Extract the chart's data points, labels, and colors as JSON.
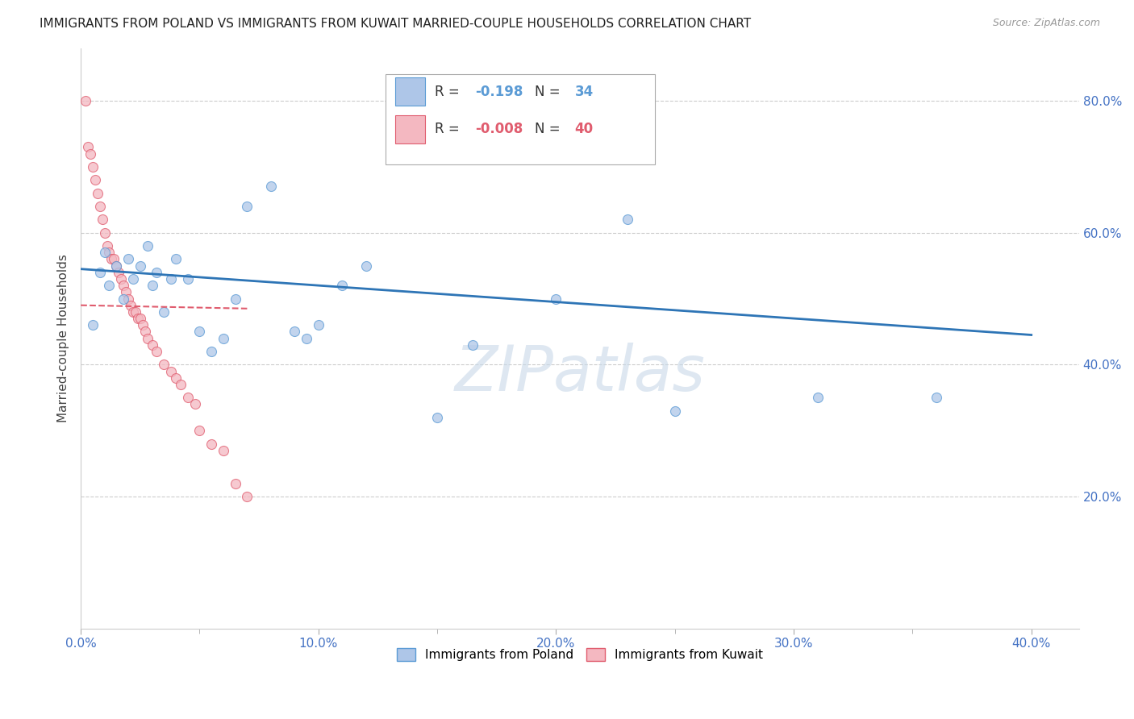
{
  "title": "IMMIGRANTS FROM POLAND VS IMMIGRANTS FROM KUWAIT MARRIED-COUPLE HOUSEHOLDS CORRELATION CHART",
  "source": "Source: ZipAtlas.com",
  "ylabel": "Married-couple Households",
  "xlim": [
    0.0,
    0.42
  ],
  "ylim": [
    0.0,
    0.88
  ],
  "xtick_labels": [
    "0.0%",
    "",
    "10.0%",
    "",
    "20.0%",
    "",
    "30.0%",
    "",
    "40.0%"
  ],
  "xtick_vals": [
    0.0,
    0.05,
    0.1,
    0.15,
    0.2,
    0.25,
    0.3,
    0.35,
    0.4
  ],
  "xtick_display": [
    "0.0%",
    "10.0%",
    "20.0%",
    "30.0%",
    "40.0%"
  ],
  "xtick_display_vals": [
    0.0,
    0.1,
    0.2,
    0.3,
    0.4
  ],
  "ytick_labels_right": [
    "20.0%",
    "40.0%",
    "60.0%",
    "80.0%"
  ],
  "ytick_vals_right": [
    0.2,
    0.4,
    0.6,
    0.8
  ],
  "grid_color": "#cccccc",
  "background_color": "#ffffff",
  "poland_color": "#aec6e8",
  "poland_edge_color": "#5b9bd5",
  "kuwait_color": "#f4b8c1",
  "kuwait_edge_color": "#e05c6e",
  "poland_R": "-0.198",
  "poland_N": "34",
  "kuwait_R": "-0.008",
  "kuwait_N": "40",
  "legend_color_poland": "#5b9bd5",
  "legend_color_kuwait": "#e05c6e",
  "legend_color_N": "#5b9bd5",
  "watermark": "ZIPatlas",
  "watermark_color": "#c8d8e8",
  "poland_scatter_x": [
    0.005,
    0.008,
    0.01,
    0.012,
    0.015,
    0.018,
    0.02,
    0.022,
    0.025,
    0.028,
    0.03,
    0.032,
    0.035,
    0.038,
    0.04,
    0.045,
    0.05,
    0.055,
    0.06,
    0.065,
    0.07,
    0.08,
    0.09,
    0.095,
    0.1,
    0.11,
    0.12,
    0.15,
    0.165,
    0.2,
    0.23,
    0.25,
    0.31,
    0.36
  ],
  "poland_scatter_y": [
    0.46,
    0.54,
    0.57,
    0.52,
    0.55,
    0.5,
    0.56,
    0.53,
    0.55,
    0.58,
    0.52,
    0.54,
    0.48,
    0.53,
    0.56,
    0.53,
    0.45,
    0.42,
    0.44,
    0.5,
    0.64,
    0.67,
    0.45,
    0.44,
    0.46,
    0.52,
    0.55,
    0.32,
    0.43,
    0.5,
    0.62,
    0.33,
    0.35,
    0.35
  ],
  "kuwait_scatter_x": [
    0.002,
    0.003,
    0.004,
    0.005,
    0.006,
    0.007,
    0.008,
    0.009,
    0.01,
    0.011,
    0.012,
    0.013,
    0.014,
    0.015,
    0.016,
    0.017,
    0.018,
    0.019,
    0.02,
    0.021,
    0.022,
    0.023,
    0.024,
    0.025,
    0.026,
    0.027,
    0.028,
    0.03,
    0.032,
    0.035,
    0.038,
    0.04,
    0.042,
    0.045,
    0.048,
    0.05,
    0.055,
    0.06,
    0.065,
    0.07
  ],
  "kuwait_scatter_y": [
    0.8,
    0.73,
    0.72,
    0.7,
    0.68,
    0.66,
    0.64,
    0.62,
    0.6,
    0.58,
    0.57,
    0.56,
    0.56,
    0.55,
    0.54,
    0.53,
    0.52,
    0.51,
    0.5,
    0.49,
    0.48,
    0.48,
    0.47,
    0.47,
    0.46,
    0.45,
    0.44,
    0.43,
    0.42,
    0.4,
    0.39,
    0.38,
    0.37,
    0.35,
    0.34,
    0.3,
    0.28,
    0.27,
    0.22,
    0.2
  ],
  "poland_trendline_x": [
    0.0,
    0.4
  ],
  "poland_trendline_y": [
    0.545,
    0.445
  ],
  "kuwait_trendline_x": [
    0.0,
    0.07
  ],
  "kuwait_trendline_y": [
    0.49,
    0.485
  ],
  "marker_size": 75,
  "scatter_alpha": 0.75,
  "trendline_poland_color": "#2e75b6",
  "trendline_kuwait_color": "#e05c6e",
  "trendline_kuwait_linestyle": "--"
}
